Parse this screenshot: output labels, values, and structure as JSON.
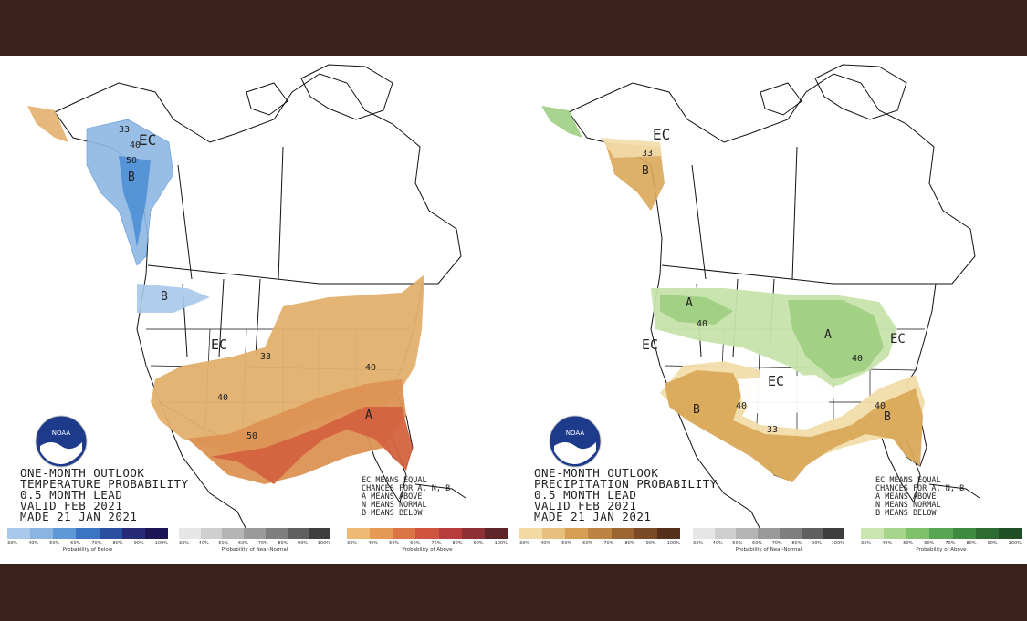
{
  "colors": {
    "frame": "#3a211c",
    "panel": "#ffffff",
    "below_temp": "#8fb8e4",
    "below_temp_strong": "#4f8fd6",
    "above_temp_light": "#e3b06e",
    "above_temp_mid": "#dc9252",
    "above_temp_strong": "#d4623f",
    "precip_above_light": "#c7e3ac",
    "precip_above_mid": "#9fcf83",
    "precip_below_light": "#f2dcaa",
    "precip_below_mid": "#d9a85a"
  },
  "maps": [
    {
      "id": "temperature",
      "title_lines": [
        "ONE-MONTH OUTLOOK",
        "TEMPERATURE PROBABILITY",
        "0.5 MONTH LEAD",
        "VALID FEB 2021",
        "MADE 21 JAN 2021"
      ],
      "labels": {
        "ec_north": "EC",
        "n33": "33",
        "n40": "40",
        "n50": "50",
        "b_alaska": "B",
        "b_northwest": "B",
        "ec_west": "EC",
        "c33": "33",
        "c40_east": "40",
        "c40_south": "40",
        "c50_south": "50",
        "a_southeast": "A"
      },
      "legend_lines": [
        "EC MEANS EQUAL",
        "CHANCES FOR A, N, B",
        "A MEANS ABOVE",
        "N MEANS NORMAL",
        "B MEANS BELOW"
      ],
      "bars": [
        {
          "caption": "Probability of Below",
          "ticks": [
            "33%",
            "40%",
            "50%",
            "60%",
            "70%",
            "80%",
            "90%",
            "100%"
          ],
          "swatches": [
            "#a9c8ea",
            "#8ab4e2",
            "#5f98d8",
            "#3c74c4",
            "#2a4f9e",
            "#262a78",
            "#1c1656"
          ]
        },
        {
          "caption": "Probability of Near-Normal",
          "ticks": [
            "33%",
            "40%",
            "50%",
            "60%",
            "70%",
            "80%",
            "90%",
            "100%"
          ],
          "swatches": [
            "#e6e6e6",
            "#cfcfcf",
            "#b5b5b5",
            "#9a9a9a",
            "#7e7e7e",
            "#5f5f5f",
            "#3e3e3e"
          ]
        },
        {
          "caption": "Probability of Above",
          "ticks": [
            "33%",
            "40%",
            "50%",
            "60%",
            "70%",
            "80%",
            "90%",
            "100%"
          ],
          "swatches": [
            "#eeb974",
            "#e69a55",
            "#dc7546",
            "#cf5540",
            "#b63d3c",
            "#8e2e35",
            "#5f2427"
          ]
        }
      ]
    },
    {
      "id": "precipitation",
      "title_lines": [
        "ONE-MONTH OUTLOOK",
        "PRECIPITATION PROBABILITY",
        "0.5 MONTH LEAD",
        "VALID FEB 2021",
        "MADE 21 JAN 2021"
      ],
      "labels": {
        "ec_north": "EC",
        "n33": "33",
        "b_alaska": "B",
        "a_north": "A",
        "n40_north": "40",
        "a_lakes": "A",
        "n40_lakes": "40",
        "ec_west": "EC",
        "ec_center": "EC",
        "ec_east": "EC",
        "b_southwest": "B",
        "n40_south": "40",
        "n33_south": "33",
        "b_southeast": "B",
        "n40_se": "40"
      },
      "legend_lines": [
        "EC MEANS EQUAL",
        "CHANCES FOR A, N, B",
        "A MEANS ABOVE",
        "N MEANS NORMAL",
        "B MEANS BELOW"
      ],
      "bars": [
        {
          "caption": "",
          "ticks": [
            "33%",
            "40%",
            "50%",
            "60%",
            "70%",
            "80%",
            "90%",
            "100%"
          ],
          "swatches": [
            "#f3d9a3",
            "#e8bf7c",
            "#d69e55",
            "#bd8343",
            "#9c6633",
            "#7a4a25",
            "#56301a"
          ]
        },
        {
          "caption": "Probability of Near-Normal",
          "ticks": [
            "33%",
            "40%",
            "50%",
            "60%",
            "70%",
            "80%",
            "90%",
            "100%"
          ],
          "swatches": [
            "#e6e6e6",
            "#cfcfcf",
            "#b5b5b5",
            "#9a9a9a",
            "#7e7e7e",
            "#5f5f5f",
            "#3e3e3e"
          ]
        },
        {
          "caption": "Probability of Above",
          "ticks": [
            "33%",
            "40%",
            "50%",
            "60%",
            "70%",
            "80%",
            "90%",
            "100%"
          ],
          "swatches": [
            "#c9e6b1",
            "#a6d58b",
            "#7fc06a",
            "#58a553",
            "#3e8a41",
            "#2c6c32",
            "#1f4f25"
          ]
        }
      ]
    }
  ],
  "logo_text": "NOAA"
}
